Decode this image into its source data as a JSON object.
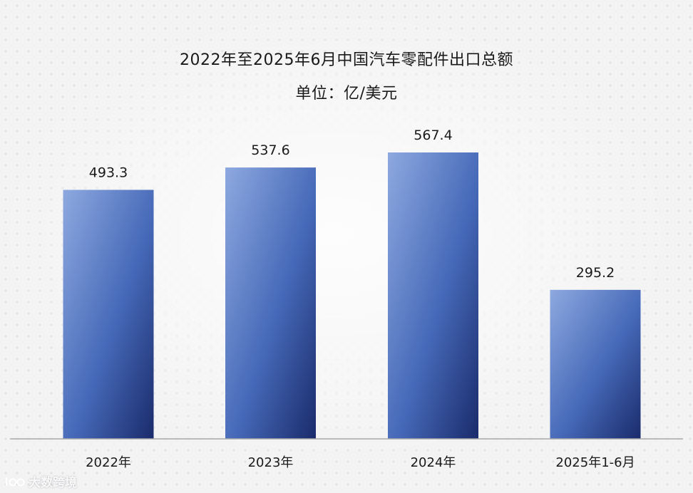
{
  "chart_data": {
    "type": "bar",
    "title": "2022年至2025年6月中国汽车零配件出口总额",
    "subtitle": "单位：亿/美元",
    "categories": [
      "2022年",
      "2023年",
      "2024年",
      "2025年1-6月"
    ],
    "values": [
      493.3,
      537.6,
      567.4,
      295.2
    ],
    "data_labels": [
      "493.3",
      "537.6",
      "567.4",
      "295.2"
    ],
    "ylim": [
      0,
      567.4
    ],
    "grid": false,
    "legend": "none",
    "colors": {
      "bar_top": "#8ea9e0",
      "bar_mid": "#4669b8",
      "bar_bottom": "#1a2b6b",
      "axis": "#a9a9a9",
      "text": "#1a1a1a"
    }
  },
  "watermark": {
    "text": "大数跨境",
    "icon": "brand-logo-icon"
  }
}
